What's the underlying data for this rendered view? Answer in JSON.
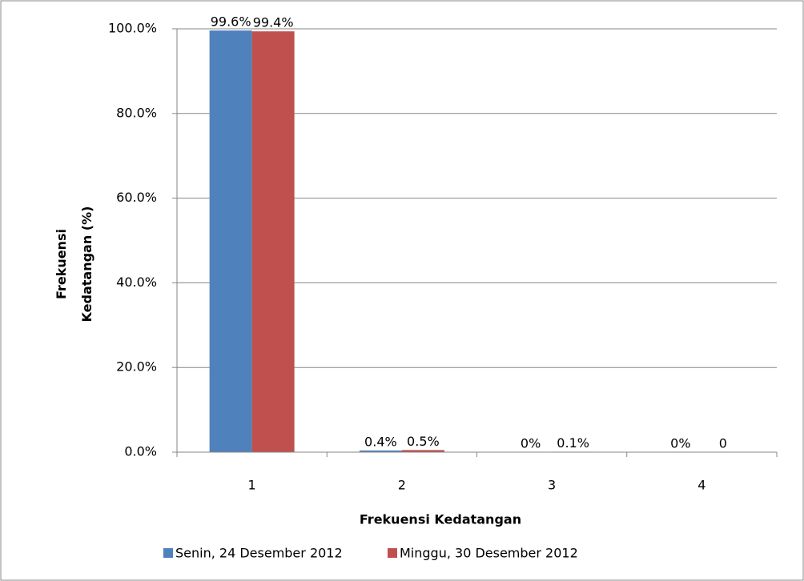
{
  "chart_data": {
    "type": "bar",
    "categories": [
      "1",
      "2",
      "3",
      "4"
    ],
    "series": [
      {
        "name": "Senin, 24 Desember 2012",
        "color": "#4f81bd",
        "values": [
          99.6,
          0.4,
          0,
          0
        ],
        "value_labels": [
          "99.6%",
          "0.4%",
          "0%",
          "0%"
        ]
      },
      {
        "name": "Minggu, 30 Desember 2012",
        "color": "#c0504d",
        "values": [
          99.4,
          0.5,
          0.1,
          0
        ],
        "value_labels": [
          "99.4%",
          "0.5%",
          "0.1%",
          "0"
        ]
      }
    ],
    "xlabel": "Frekuensi Kedatangan",
    "ylabel": "Frekuensi Kedatangan (%)",
    "ylim": [
      0,
      100
    ],
    "yticks": [
      {
        "value": 0,
        "label": "0.0%"
      },
      {
        "value": 20,
        "label": "20.0%"
      },
      {
        "value": 40,
        "label": "40.0%"
      },
      {
        "value": 60,
        "label": "60.0%"
      },
      {
        "value": 80,
        "label": "80.0%"
      },
      {
        "value": 100,
        "label": "100.0%"
      }
    ],
    "grid": true,
    "legend": "bottom"
  }
}
